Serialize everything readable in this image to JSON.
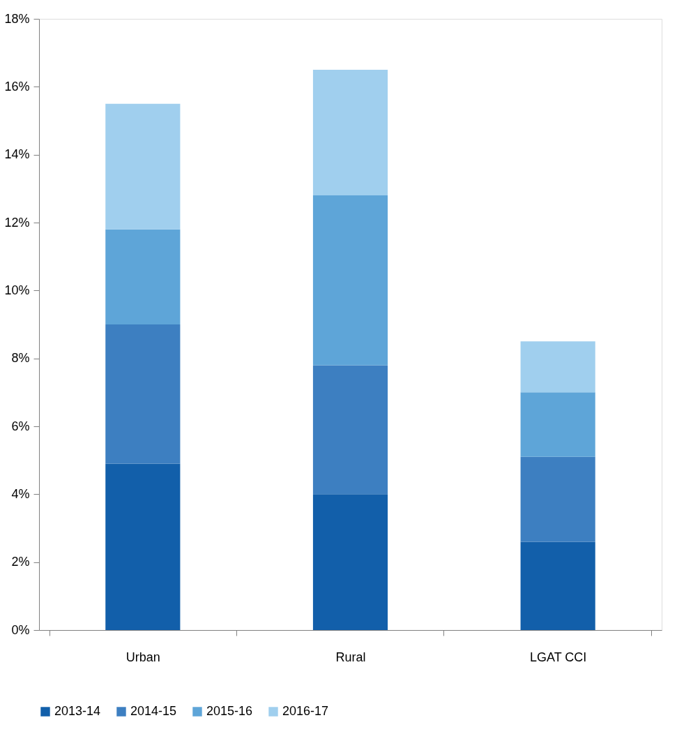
{
  "chart_data": {
    "type": "bar",
    "stacked": true,
    "categories": [
      "Urban",
      "Rural",
      "LGAT CCI"
    ],
    "series": [
      {
        "name": "2013-14",
        "color": "#125faa",
        "values": [
          4.9,
          4.0,
          2.6
        ]
      },
      {
        "name": "2014-15",
        "color": "#3d7fc1",
        "values": [
          4.1,
          3.8,
          2.5
        ]
      },
      {
        "name": "2015-16",
        "color": "#5ea5d8",
        "values": [
          2.8,
          5.0,
          1.9
        ]
      },
      {
        "name": "2016-17",
        "color": "#a0cfee",
        "values": [
          3.7,
          3.7,
          1.5
        ]
      }
    ],
    "ylim": [
      0,
      18
    ],
    "yticks": [
      {
        "value": 0,
        "label": "0%"
      },
      {
        "value": 2,
        "label": "2%"
      },
      {
        "value": 4,
        "label": "4%"
      },
      {
        "value": 6,
        "label": "6%"
      },
      {
        "value": 8,
        "label": "8%"
      },
      {
        "value": 10,
        "label": "10%"
      },
      {
        "value": 12,
        "label": "12%"
      },
      {
        "value": 14,
        "label": "14%"
      },
      {
        "value": 16,
        "label": "16%"
      },
      {
        "value": 18,
        "label": "18%"
      }
    ],
    "grid": false,
    "legend": "bottom"
  }
}
